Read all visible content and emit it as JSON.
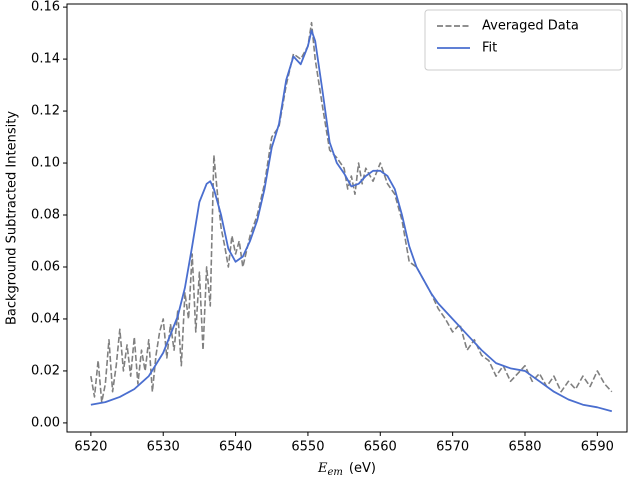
{
  "chart_data": {
    "type": "line",
    "x_label": {
      "symbol": "E",
      "subscript": "em",
      "unit": "(eV)"
    },
    "y_label": "Background Subtracted Intensity",
    "xlim": [
      6516.7,
      6594.1
    ],
    "ylim": [
      -0.0035,
      0.1612
    ],
    "xticks": [
      6520,
      6530,
      6540,
      6550,
      6560,
      6570,
      6580,
      6590
    ],
    "yticks": [
      {
        "value": 0,
        "label": "0.00"
      },
      0.02,
      0.04,
      0.06,
      0.08,
      {
        "value": 0.1,
        "label": "0.10"
      },
      0.12,
      0.14,
      0.16
    ],
    "legend": "upper right",
    "series": [
      {
        "name": "Averaged Data",
        "color": "#808080",
        "linestyle": "dashed",
        "x": [
          6520,
          6520.5,
          6521,
          6521.5,
          6522,
          6522.5,
          6523,
          6523.5,
          6524,
          6524.5,
          6525,
          6525.5,
          6526,
          6526.5,
          6527,
          6527.5,
          6528,
          6528.5,
          6529,
          6529.5,
          6530,
          6530.5,
          6531,
          6531.5,
          6532,
          6532.5,
          6533,
          6533.5,
          6534,
          6534.5,
          6535,
          6535.5,
          6536,
          6536.5,
          6537,
          6537.5,
          6538,
          6538.5,
          6539,
          6539.5,
          6540,
          6540.5,
          6541,
          6542,
          6543,
          6544,
          6545,
          6546,
          6547,
          6548,
          6549,
          6550,
          6550.5,
          6551,
          6552,
          6553,
          6554,
          6555,
          6555.5,
          6556,
          6556.5,
          6557,
          6557.5,
          6558,
          6559,
          6560,
          6560.5,
          6561,
          6562,
          6563,
          6564,
          6565,
          6566,
          6567,
          6568,
          6569,
          6570,
          6571,
          6572,
          6573,
          6574,
          6575,
          6576,
          6577,
          6578,
          6579,
          6580,
          6581,
          6582,
          6583,
          6584,
          6585,
          6586,
          6587,
          6588,
          6589,
          6590,
          6591,
          6592
        ],
        "values": [
          0.018,
          0.01,
          0.024,
          0.008,
          0.015,
          0.032,
          0.012,
          0.022,
          0.036,
          0.02,
          0.03,
          0.018,
          0.033,
          0.015,
          0.028,
          0.02,
          0.032,
          0.012,
          0.026,
          0.035,
          0.04,
          0.025,
          0.038,
          0.028,
          0.043,
          0.022,
          0.05,
          0.04,
          0.065,
          0.035,
          0.058,
          0.028,
          0.06,
          0.045,
          0.103,
          0.088,
          0.075,
          0.068,
          0.06,
          0.072,
          0.065,
          0.07,
          0.06,
          0.072,
          0.08,
          0.092,
          0.11,
          0.114,
          0.13,
          0.142,
          0.14,
          0.145,
          0.154,
          0.14,
          0.122,
          0.105,
          0.102,
          0.098,
          0.09,
          0.095,
          0.088,
          0.1,
          0.092,
          0.098,
          0.093,
          0.1,
          0.096,
          0.092,
          0.088,
          0.078,
          0.062,
          0.06,
          0.055,
          0.05,
          0.044,
          0.04,
          0.035,
          0.038,
          0.028,
          0.032,
          0.026,
          0.024,
          0.018,
          0.022,
          0.016,
          0.019,
          0.022,
          0.016,
          0.019,
          0.014,
          0.018,
          0.012,
          0.016,
          0.013,
          0.018,
          0.014,
          0.02,
          0.015,
          0.012
        ]
      },
      {
        "name": "Fit",
        "color": "#4a6ecf",
        "linestyle": "solid",
        "x": [
          6520,
          6522,
          6524,
          6526,
          6528,
          6530,
          6532,
          6533,
          6534,
          6535,
          6536,
          6536.5,
          6537,
          6538,
          6539,
          6540,
          6541,
          6542,
          6543,
          6544,
          6545,
          6546,
          6547,
          6548,
          6549,
          6550,
          6550.5,
          6551,
          6552,
          6553,
          6554,
          6555,
          6556,
          6557,
          6558,
          6559,
          6560,
          6561,
          6562,
          6563,
          6564,
          6565,
          6566,
          6567,
          6568,
          6570,
          6572,
          6574,
          6576,
          6578,
          6580,
          6582,
          6584,
          6586,
          6588,
          6590,
          6592
        ],
        "values": [
          0.007,
          0.008,
          0.01,
          0.013,
          0.018,
          0.027,
          0.041,
          0.052,
          0.068,
          0.085,
          0.092,
          0.093,
          0.09,
          0.08,
          0.067,
          0.062,
          0.064,
          0.07,
          0.078,
          0.09,
          0.106,
          0.115,
          0.132,
          0.141,
          0.138,
          0.145,
          0.151,
          0.147,
          0.128,
          0.108,
          0.1,
          0.096,
          0.091,
          0.092,
          0.095,
          0.097,
          0.097,
          0.095,
          0.09,
          0.08,
          0.068,
          0.06,
          0.055,
          0.05,
          0.046,
          0.04,
          0.034,
          0.028,
          0.023,
          0.021,
          0.02,
          0.016,
          0.012,
          0.009,
          0.007,
          0.006,
          0.0045
        ]
      }
    ]
  }
}
